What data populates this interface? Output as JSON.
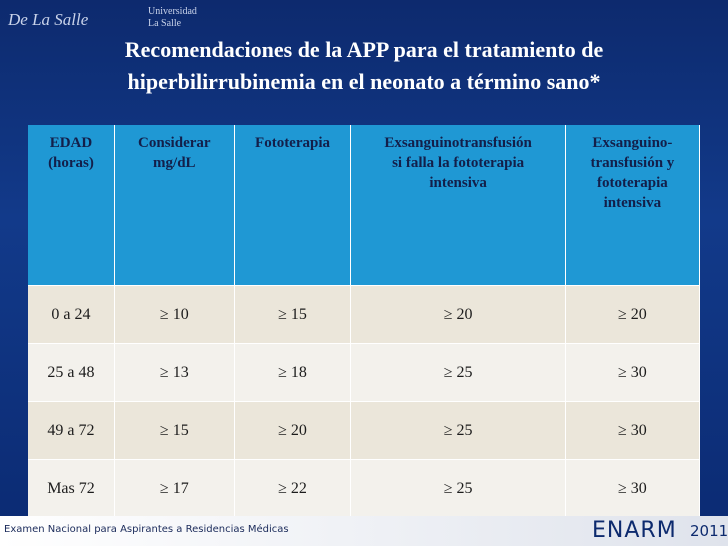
{
  "header": {
    "logo_script": "De La Salle",
    "logo_university": "Universidad",
    "logo_name": "La Salle",
    "title_line1": "Recomendaciones de la APP para el tratamiento de",
    "title_line2": "hiperbilirrubinemia en el neonato a término sano*"
  },
  "table": {
    "columns": [
      [
        "EDAD",
        "(horas)"
      ],
      [
        "Considerar",
        "mg/dL"
      ],
      [
        "Fototerapia"
      ],
      [
        "Exsanguinotransfusión",
        "si falla la fototerapia",
        "intensiva"
      ],
      [
        "Exsanguino-",
        "transfusión y",
        "fototerapia",
        "intensiva"
      ]
    ],
    "rows": [
      [
        "0 a 24",
        "≥ 10",
        "≥ 15",
        "≥ 20",
        "≥ 20"
      ],
      [
        "25 a 48",
        "≥ 13",
        "≥ 18",
        "≥ 25",
        "≥ 30"
      ],
      [
        "49 a 72",
        "≥ 15",
        "≥ 20",
        "≥ 25",
        "≥ 30"
      ],
      [
        "Mas 72",
        "≥ 17",
        "≥ 22",
        "≥ 25",
        "≥ 30"
      ]
    ]
  },
  "footer": {
    "exam": "Examen Nacional para Aspirantes a Residencias Médicas",
    "brand": "ENARM",
    "year": "2011"
  }
}
